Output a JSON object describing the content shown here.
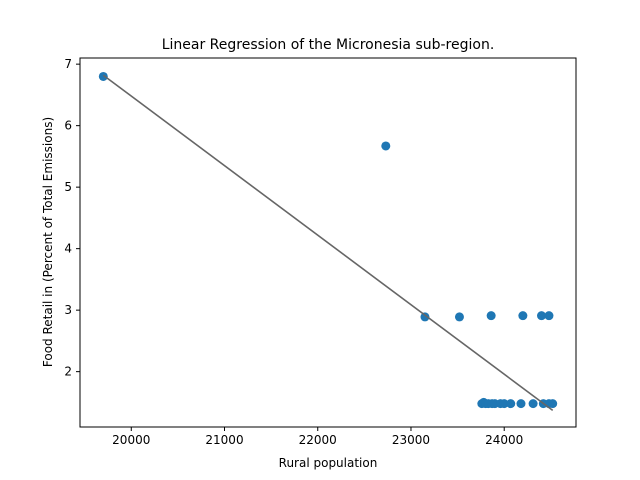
{
  "chart_data": {
    "type": "scatter",
    "title": "Linear Regression of the Micronesia sub-region.",
    "xlabel": "Rural population",
    "ylabel": "Food Retail in (Percent of Total Emissions)",
    "xlim": [
      19450,
      24770
    ],
    "ylim": [
      1.1,
      7.1
    ],
    "xticks": [
      20000,
      21000,
      22000,
      23000,
      24000
    ],
    "yticks": [
      2,
      3,
      4,
      5,
      6,
      7
    ],
    "grid": false,
    "legend": "none",
    "series": [
      {
        "kind": "scatter",
        "color": "#1f77b4",
        "x": [
          19700,
          22730,
          23150,
          23520,
          23860,
          24200,
          24400,
          24480,
          23760,
          23780,
          23800,
          23830,
          23870,
          23900,
          23960,
          24000,
          24070,
          24180,
          24310,
          24420,
          24480,
          24520
        ],
        "y": [
          6.8,
          5.67,
          2.89,
          2.89,
          2.91,
          2.91,
          2.91,
          2.91,
          1.48,
          1.5,
          1.48,
          1.48,
          1.48,
          1.48,
          1.48,
          1.48,
          1.48,
          1.48,
          1.48,
          1.48,
          1.48,
          1.48
        ]
      },
      {
        "kind": "line",
        "color": "#666666",
        "x": [
          19700,
          24520
        ],
        "y": [
          6.82,
          1.37
        ]
      }
    ]
  }
}
